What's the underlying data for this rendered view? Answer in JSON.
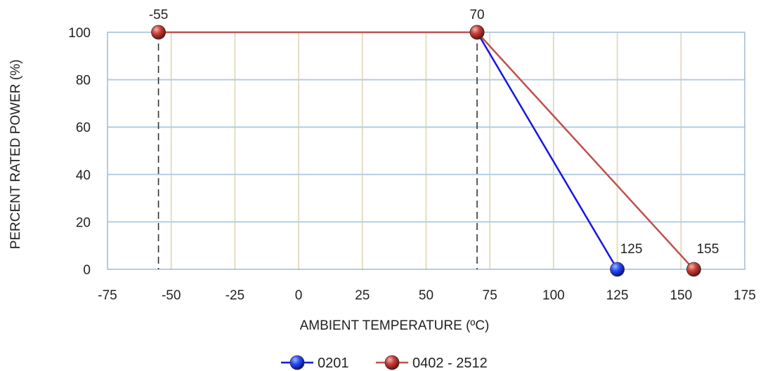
{
  "chart_data": {
    "type": "line",
    "xlabel": "AMBIENT TEMPERATURE (ºC)",
    "ylabel": "PERCENT RATED POWER (%)",
    "xlim": [
      -75,
      175
    ],
    "ylim": [
      0,
      100
    ],
    "x_ticks": [
      "-75",
      "-50",
      "-25",
      "0",
      "25",
      "50",
      "75",
      "100",
      "125",
      "150",
      "175"
    ],
    "y_ticks": [
      "0",
      "20",
      "40",
      "60",
      "80",
      "100"
    ],
    "grid": true,
    "legend": "bottom",
    "series": [
      {
        "name": "0201",
        "color": "#1515e6",
        "marker_color": "#1a3cff",
        "points": [
          [
            70,
            100
          ],
          [
            125,
            0
          ]
        ]
      },
      {
        "name": "0402 - 2512",
        "color": "#c0504d",
        "marker_color": "#c0392b",
        "points": [
          [
            -55,
            100
          ],
          [
            70,
            100
          ],
          [
            155,
            0
          ]
        ]
      }
    ],
    "annotations": [
      {
        "text": "-55",
        "x": -55,
        "y": 100
      },
      {
        "text": "70",
        "x": 70,
        "y": 100
      },
      {
        "text": "125",
        "x": 125,
        "y": 0
      },
      {
        "text": "155",
        "x": 155,
        "y": 0
      }
    ],
    "reference_lines": [
      {
        "x": -55,
        "style": "dashed"
      },
      {
        "x": 70,
        "style": "dashed"
      }
    ]
  }
}
